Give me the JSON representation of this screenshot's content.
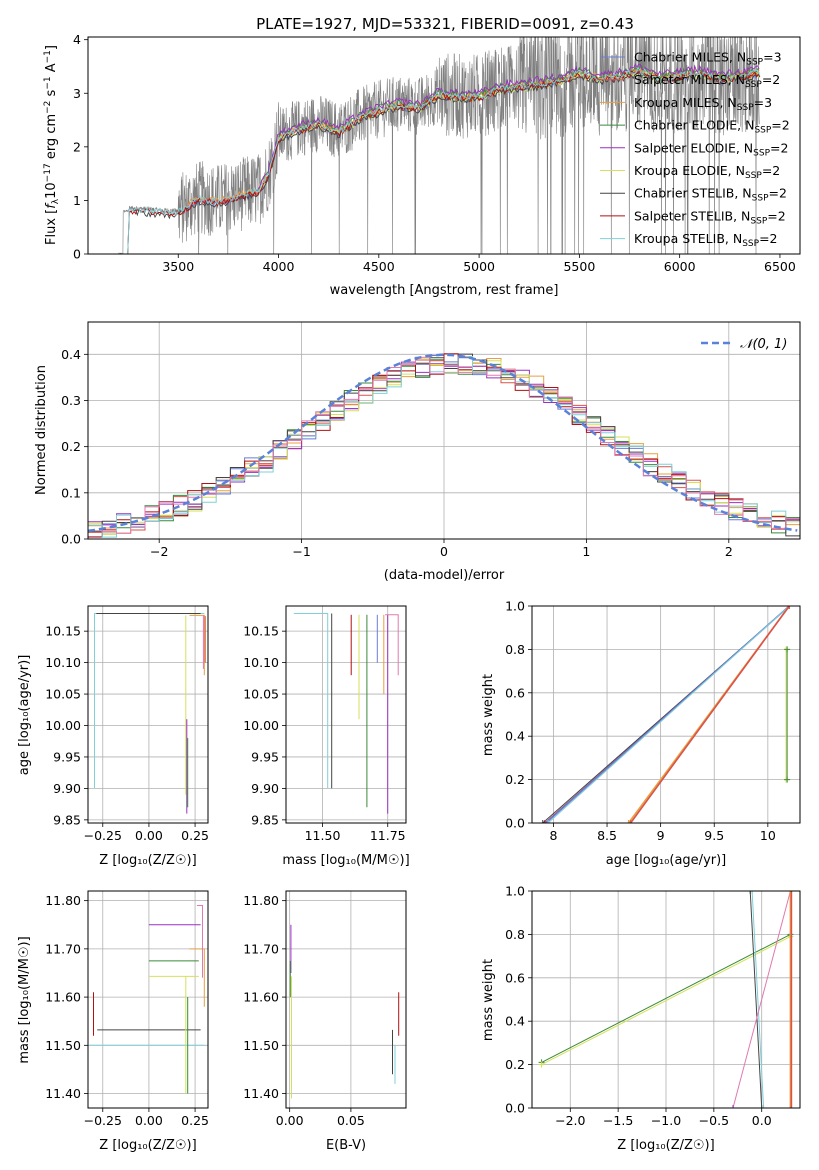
{
  "title": "PLATE=1927, MJD=53321, FIBERID=0091, z=0.43",
  "colors": {
    "Chabrier MILES": "#6b7bd6",
    "Salpeter MILES": "#d9534a",
    "Kroupa MILES": "#e8a040",
    "Chabrier ELODIE": "#3a8a3a",
    "Salpeter ELODIE": "#9b30c0",
    "Kroupa ELODIE": "#d6e05a",
    "Chabrier STELIB": "#444444",
    "Salpeter STELIB": "#b01010",
    "Kroupa STELIB": "#7fd0d8",
    "data": "#808080",
    "gaussian": "#5a82d8",
    "grid": "#b0b0b0",
    "axes": "#000000"
  },
  "chart_data": [
    {
      "id": "spectrum",
      "type": "line",
      "title": "PLATE=1927, MJD=53321, FIBERID=0091, z=0.43",
      "xlabel": "wavelength [Angstrom, rest frame]",
      "ylabel_parts": [
        "Flux [",
        "f",
        "λ",
        "10",
        "−17",
        " erg cm",
        "−2",
        " s",
        "−1",
        " A",
        "−1",
        "]"
      ],
      "xlim": [
        3050,
        6600
      ],
      "ylim": [
        0,
        4.05
      ],
      "xticks": [
        3500,
        4000,
        4500,
        5000,
        5500,
        6000,
        6500
      ],
      "yticks": [
        0,
        1,
        2,
        3,
        4
      ],
      "grid": false,
      "legend_position": "top-right",
      "legend": [
        {
          "label": "Chabrier MILES",
          "nssp": "3"
        },
        {
          "label": "Salpeter MILES",
          "nssp": "2"
        },
        {
          "label": "Kroupa MILES",
          "nssp": "3"
        },
        {
          "label": "Chabrier ELODIE",
          "nssp": "2"
        },
        {
          "label": "Salpeter ELODIE",
          "nssp": "2"
        },
        {
          "label": "Kroupa ELODIE",
          "nssp": "2"
        },
        {
          "label": "Chabrier STELIB",
          "nssp": "2"
        },
        {
          "label": "Salpeter STELIB",
          "nssp": "2"
        },
        {
          "label": "Kroupa STELIB",
          "nssp": "2"
        }
      ],
      "legend_prefix": "N",
      "legend_sub": "SSP",
      "data_range": [
        3200,
        6400
      ],
      "model_keypoints": {
        "x": [
          3200,
          3250,
          3300,
          3400,
          3500,
          3600,
          3700,
          3800,
          3900,
          3950,
          4000,
          4100,
          4200,
          4300,
          4400,
          4500,
          4600,
          4700,
          4800,
          4900,
          5000,
          5100,
          5200,
          5300,
          5400,
          5500,
          5600,
          5700,
          5800,
          5900,
          6000,
          6100,
          6200,
          6300,
          6400
        ],
        "y": [
          0.0,
          0.85,
          0.85,
          0.82,
          0.8,
          1.05,
          1.0,
          1.1,
          1.2,
          1.5,
          2.2,
          2.35,
          2.45,
          2.3,
          2.55,
          2.7,
          2.8,
          2.75,
          3.0,
          2.95,
          2.95,
          3.1,
          3.15,
          3.2,
          3.25,
          3.4,
          3.3,
          3.35,
          3.45,
          3.3,
          3.35,
          3.4,
          3.3,
          3.35,
          3.4
        ]
      }
    },
    {
      "id": "residuals",
      "type": "step",
      "xlabel": "(data-model)/error",
      "ylabel": "Normed distribution",
      "xlim": [
        -2.5,
        2.5
      ],
      "ylim": [
        0,
        0.47
      ],
      "xticks": [
        -2,
        -1,
        0,
        1,
        2
      ],
      "yticks": [
        0.0,
        0.1,
        0.2,
        0.3,
        0.4
      ],
      "grid": true,
      "legend": [
        "𝒩(0, 1)"
      ],
      "legend_position": "top-right",
      "gaussian": {
        "mean": 0,
        "sigma": 1
      }
    },
    {
      "id": "age-vs-Z",
      "type": "line",
      "xlabel": "Z [log₁₀(Z/Z☉)]",
      "ylabel": "age  [log₁₀(age/yr)]",
      "xlim": [
        -0.33,
        0.32
      ],
      "ylim": [
        9.845,
        10.19
      ],
      "xticks": [
        -0.25,
        0.0,
        0.25
      ],
      "xticklabels": [
        "−0.25",
        "0.00",
        "0.25"
      ],
      "yticks": [
        9.85,
        9.9,
        9.95,
        10.0,
        10.05,
        10.1,
        10.15
      ],
      "grid": true
    },
    {
      "id": "age-vs-mass",
      "type": "line",
      "xlabel": "mass [log₁₀(M/M☉)]",
      "xlim": [
        11.36,
        11.82
      ],
      "ylim": [
        9.845,
        10.19
      ],
      "xticks": [
        11.5,
        11.75
      ],
      "xticklabels": [
        "11.50",
        "11.75"
      ],
      "yticks": [
        9.85,
        9.9,
        9.95,
        10.0,
        10.05,
        10.1,
        10.15
      ],
      "grid": true
    },
    {
      "id": "weight-vs-age",
      "type": "line",
      "xlabel": "age  [log₁₀(age/yr)]",
      "ylabel": "mass weight",
      "xlim": [
        7.8,
        10.3
      ],
      "ylim": [
        0,
        1
      ],
      "xticks": [
        8.0,
        8.5,
        9.0,
        9.5,
        10.0
      ],
      "yticks": [
        0.0,
        0.2,
        0.4,
        0.6,
        0.8,
        1.0
      ],
      "grid": true,
      "series": [
        {
          "model": "Chabrier STELIB",
          "x": [
            7.9,
            10.2
          ],
          "y": [
            0.0,
            1.0
          ]
        },
        {
          "model": "Salpeter STELIB",
          "x": [
            7.92,
            10.2
          ],
          "y": [
            0.0,
            1.0
          ]
        },
        {
          "model": "Chabrier MILES",
          "x": [
            7.93,
            10.2
          ],
          "y": [
            0.0,
            1.0
          ]
        },
        {
          "model": "Kroupa STELIB",
          "x": [
            7.95,
            10.2
          ],
          "y": [
            0.0,
            1.0
          ]
        },
        {
          "model": "Kroupa MILES",
          "x": [
            8.7,
            10.2
          ],
          "y": [
            0.0,
            1.0
          ]
        },
        {
          "model": "Salpeter MILES",
          "x": [
            8.72,
            10.2
          ],
          "y": [
            0.0,
            1.0
          ]
        },
        {
          "model": "Kroupa ELODIE",
          "x": [
            10.17,
            10.17
          ],
          "y": [
            0.2,
            0.8
          ]
        },
        {
          "model": "Chabrier ELODIE",
          "x": [
            10.18,
            10.18
          ],
          "y": [
            0.2,
            0.8
          ]
        }
      ]
    },
    {
      "id": "mass-vs-Z",
      "type": "line",
      "xlabel": "Z [log₁₀(Z/Z☉)]",
      "ylabel": "mass [log₁₀(M/M☉)]",
      "xlim": [
        -0.33,
        0.32
      ],
      "ylim": [
        11.37,
        11.82
      ],
      "xticks": [
        -0.25,
        0.0,
        0.25
      ],
      "xticklabels": [
        "−0.25",
        "0.00",
        "0.25"
      ],
      "yticks": [
        11.4,
        11.5,
        11.6,
        11.7,
        11.8
      ],
      "grid": true
    },
    {
      "id": "mass-vs-EBV",
      "type": "line",
      "xlabel": "E(B-V)",
      "xlim": [
        -0.003,
        0.095
      ],
      "ylim": [
        11.37,
        11.82
      ],
      "xticks": [
        0.0,
        0.05
      ],
      "xticklabels": [
        "0.00",
        "0.05"
      ],
      "yticks": [
        11.4,
        11.5,
        11.6,
        11.7,
        11.8
      ],
      "grid": true
    },
    {
      "id": "weight-vs-Z",
      "type": "line",
      "xlabel": "Z [log₁₀(Z/Z☉)]",
      "ylabel": "mass weight",
      "xlim": [
        -2.4,
        0.4
      ],
      "ylim": [
        0,
        1
      ],
      "xticks": [
        -2.0,
        -1.5,
        -1.0,
        -0.5,
        0.0
      ],
      "xticklabels": [
        "−2.0",
        "−1.5",
        "−1.0",
        "−0.5",
        "0.0"
      ],
      "yticks": [
        0.0,
        0.2,
        0.4,
        0.6,
        0.8,
        1.0
      ],
      "grid": true,
      "series": [
        {
          "model": "Chabrier ELODIE",
          "x": [
            -2.3,
            0.3
          ],
          "y": [
            0.21,
            0.8
          ]
        },
        {
          "model": "Kroupa ELODIE",
          "x": [
            -2.3,
            0.3
          ],
          "y": [
            0.2,
            0.79
          ]
        },
        {
          "model": "Chabrier STELIB",
          "x": [
            -0.12,
            0.0
          ],
          "y": [
            1.0,
            0.0
          ]
        },
        {
          "model": "Kroupa STELIB",
          "x": [
            -0.1,
            0.02
          ],
          "y": [
            1.0,
            0.0
          ]
        },
        {
          "model": "Salpeter ELODIE",
          "x": [
            -0.3,
            0.3
          ],
          "y": [
            0.0,
            1.0
          ]
        },
        {
          "model": "Kroupa MILES",
          "x": [
            0.3,
            0.3
          ],
          "y": [
            0.0,
            1.0
          ]
        },
        {
          "model": "Salpeter MILES",
          "x": [
            0.31,
            0.31
          ],
          "y": [
            0.0,
            1.0
          ]
        }
      ]
    }
  ]
}
